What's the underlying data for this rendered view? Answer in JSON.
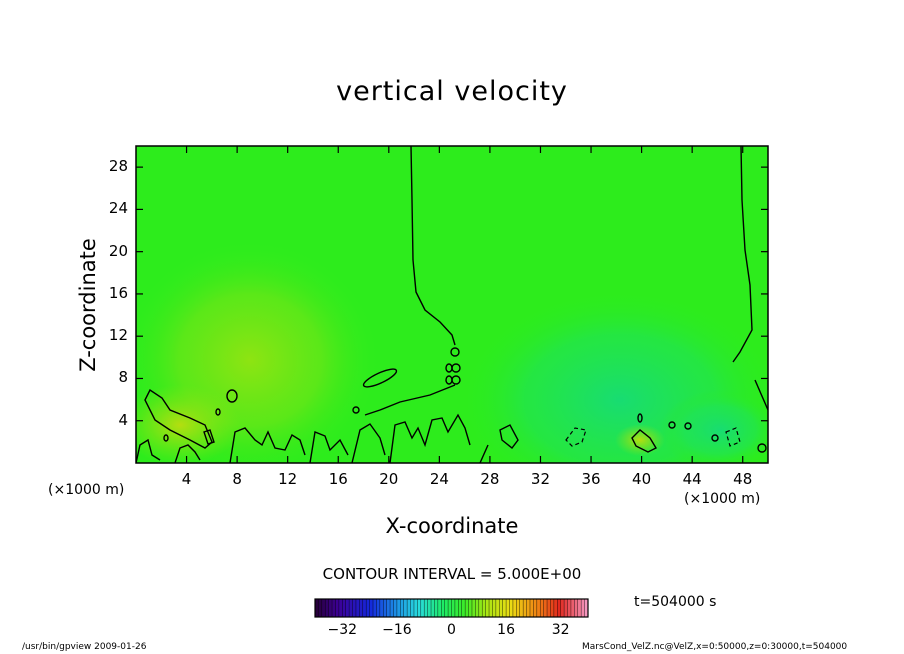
{
  "chart_data": {
    "type": "heatmap",
    "title": "vertical velocity",
    "xlabel": "X-coordinate",
    "ylabel": "Z-coordinate",
    "x_unit_label": "(×1000 m)",
    "y_unit_label": "(×1000 m)",
    "xlim": [
      0,
      50
    ],
    "ylim": [
      0,
      30
    ],
    "x_ticks": [
      4,
      8,
      12,
      16,
      20,
      24,
      28,
      32,
      36,
      40,
      44,
      48
    ],
    "y_ticks": [
      4,
      8,
      12,
      16,
      20,
      24,
      28
    ],
    "contour_interval": "CONTOUR INTERVAL = 5.000E+00",
    "time": "t=504000 s",
    "colorbar": {
      "range": [
        -40,
        40
      ],
      "ticks": [
        -32,
        -16,
        0,
        16,
        32
      ],
      "tick_labels": [
        "−32",
        "−16",
        "0",
        "16",
        "32"
      ],
      "colormap": "rainbow (dark purple → blue → cyan → green → yellow → orange → red → pink)"
    },
    "field_description": {
      "background_value": 0,
      "positive_regions": [
        {
          "x_range": [
            0,
            14
          ],
          "z_range": [
            0,
            12
          ],
          "peak_approx": 10
        }
      ],
      "negative_regions": [
        {
          "x_range": [
            30,
            50
          ],
          "z_range": [
            0,
            12
          ],
          "peak_approx": -4
        }
      ],
      "zero_contour_vertical_lines_x": [
        22,
        48
      ]
    }
  },
  "footer": {
    "left": "/usr/bin/gpview   2009-01-26",
    "right": "MarsCond_VelZ.nc@VelZ,x=0:50000,z=0:30000,t=504000"
  },
  "colors": {
    "background_green": "#2dec1c",
    "positive_tint": "#7ce614",
    "negative_tint": "#14e46a",
    "contour": "#000000"
  }
}
